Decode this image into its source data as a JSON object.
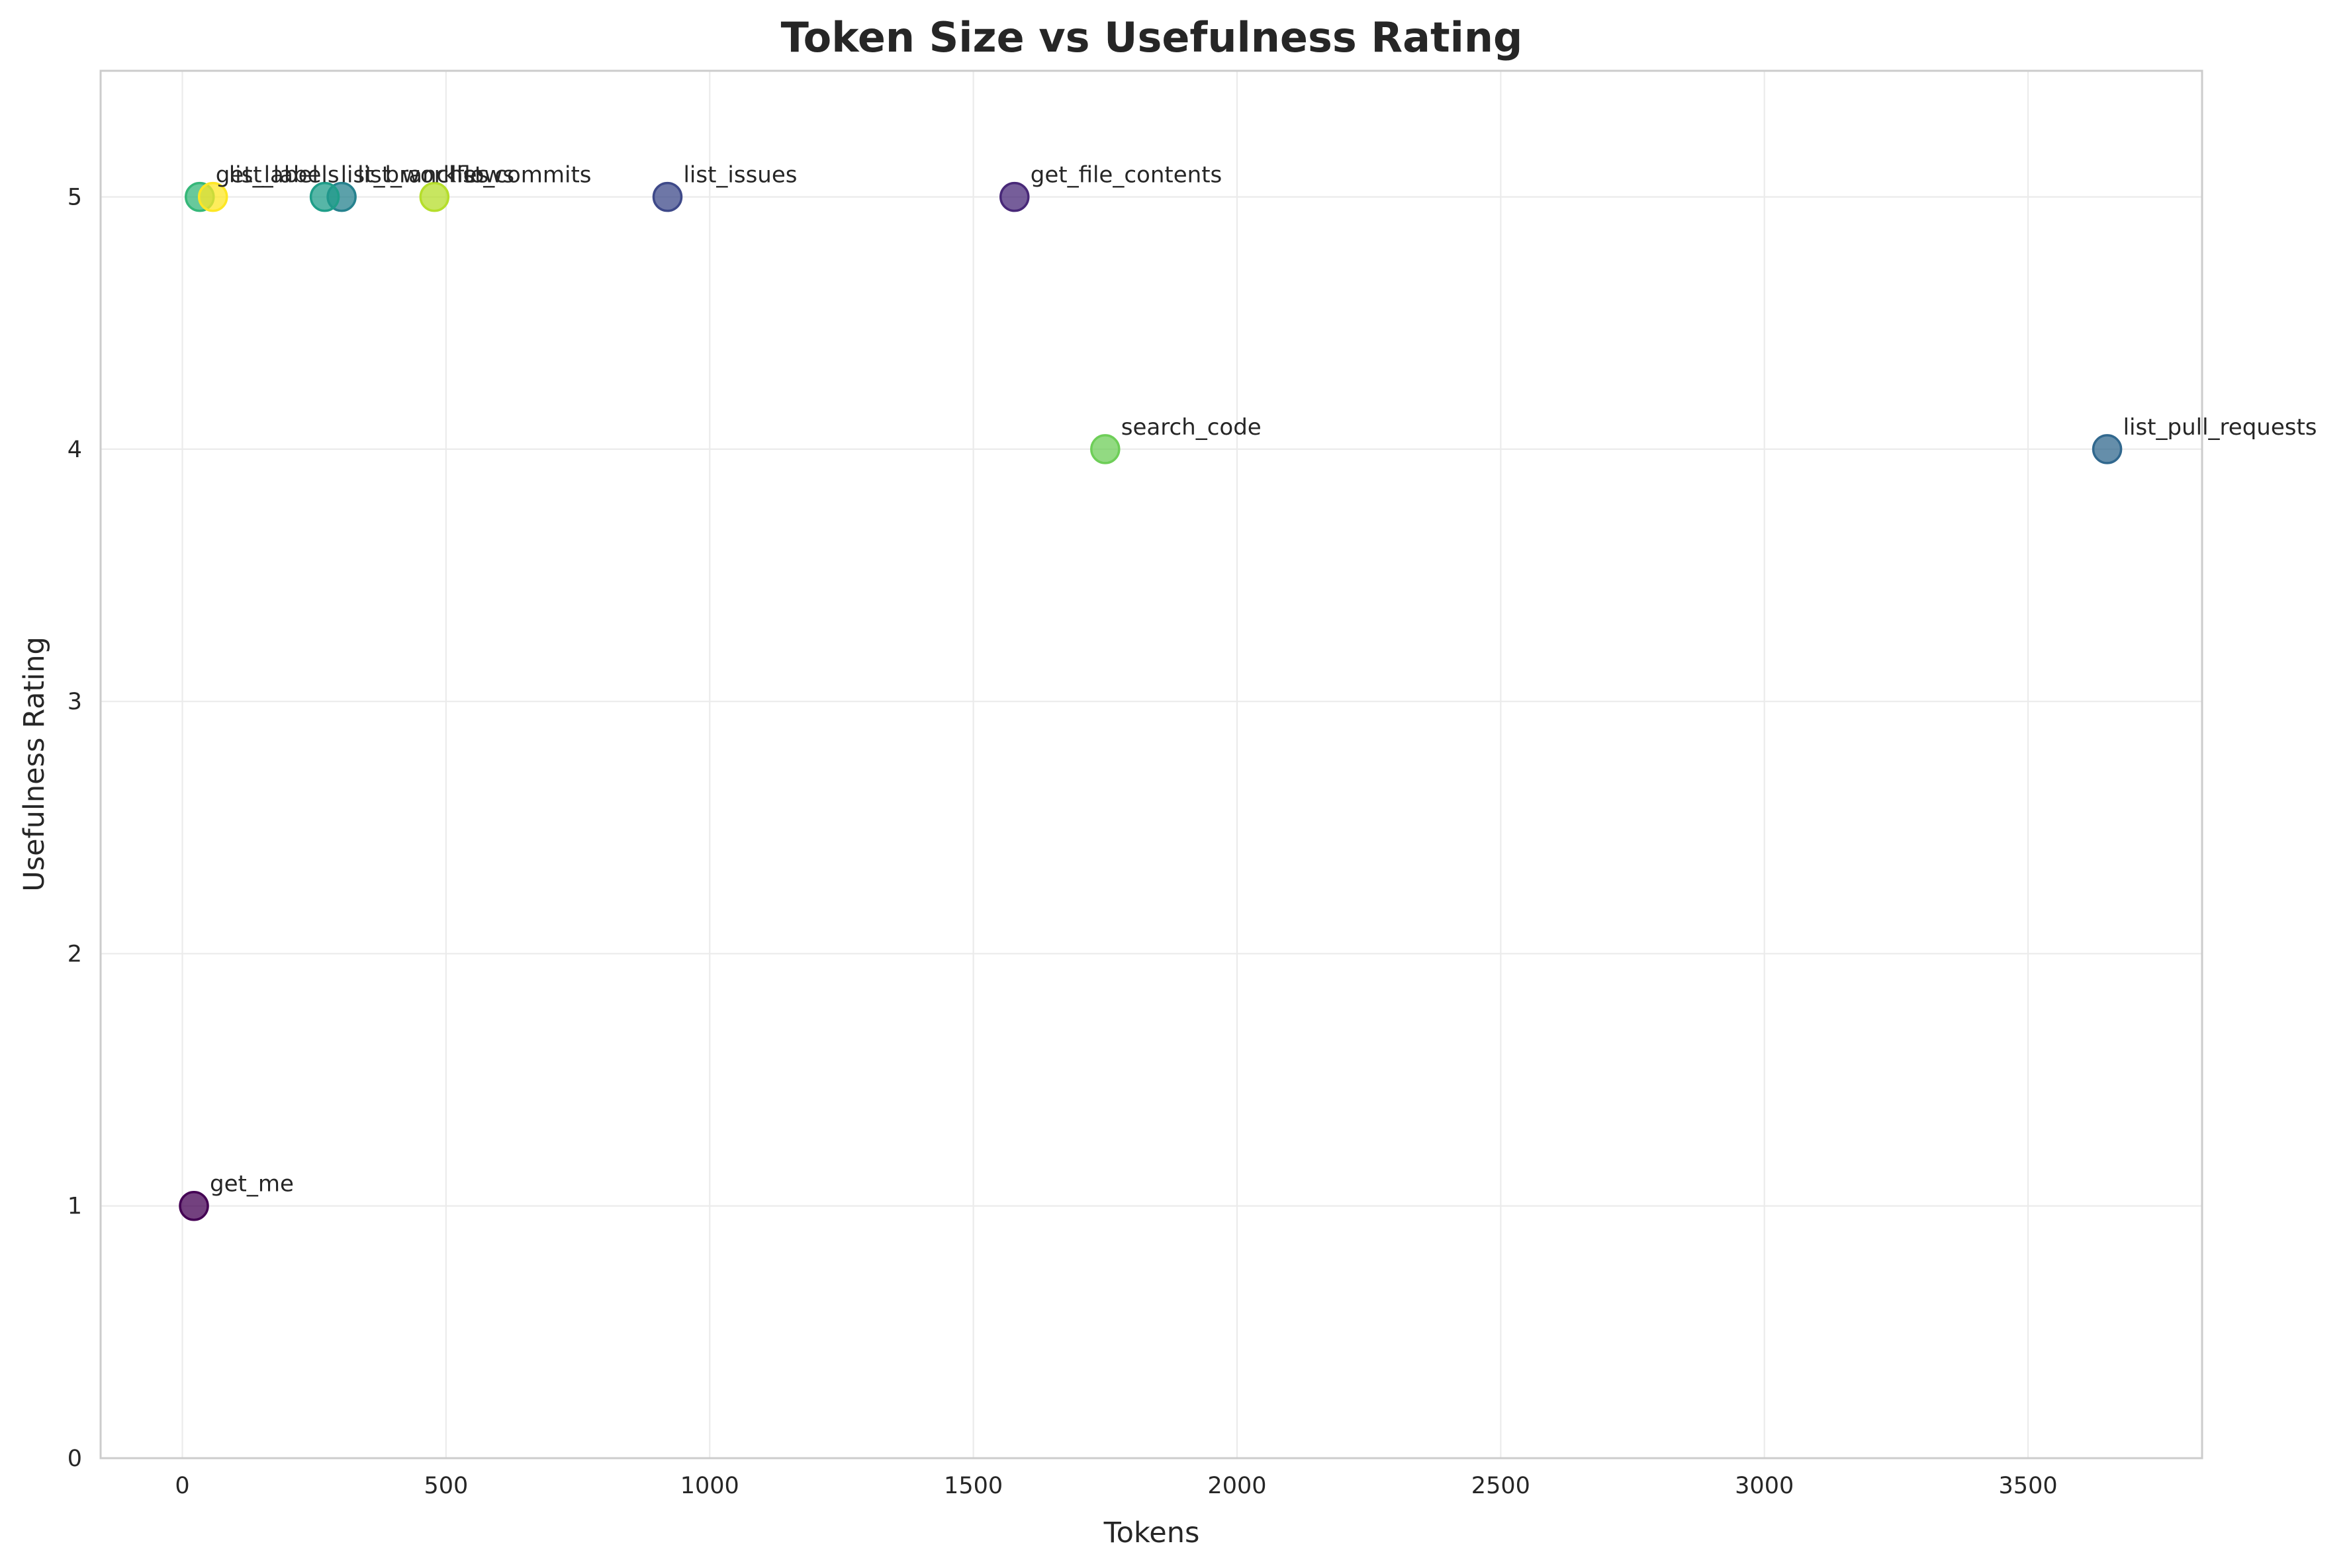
{
  "chart_data": {
    "type": "scatter",
    "title": "Token Size vs Usefulness Rating",
    "xlabel": "Tokens",
    "ylabel": "Usefulness Rating",
    "xlim": [
      -155,
      3830
    ],
    "ylim": [
      0,
      5.5
    ],
    "xticks": [
      0,
      500,
      1000,
      1500,
      2000,
      2500,
      3000,
      3500
    ],
    "yticks": [
      0,
      1,
      2,
      3,
      4,
      5
    ],
    "grid": true,
    "points": [
      {
        "label": "get_me",
        "x": 22,
        "y": 1,
        "color": "#440154"
      },
      {
        "label": "get_file_contents",
        "x": 1578,
        "y": 5,
        "color": "#482878"
      },
      {
        "label": "list_issues",
        "x": 920,
        "y": 5,
        "color": "#3e4989"
      },
      {
        "label": "list_pull_requests",
        "x": 3650,
        "y": 4,
        "color": "#31688e"
      },
      {
        "label": "list_workflows",
        "x": 302,
        "y": 5,
        "color": "#26828e"
      },
      {
        "label": "list_branches",
        "x": 270,
        "y": 5,
        "color": "#1f9e89"
      },
      {
        "label": "get_label",
        "x": 33,
        "y": 5,
        "color": "#35b779"
      },
      {
        "label": "search_code",
        "x": 1750,
        "y": 4,
        "color": "#6ece58"
      },
      {
        "label": "list_commits",
        "x": 478,
        "y": 5,
        "color": "#b5de2b"
      },
      {
        "label": "list_labels",
        "x": 58,
        "y": 5,
        "color": "#fde725"
      }
    ]
  }
}
